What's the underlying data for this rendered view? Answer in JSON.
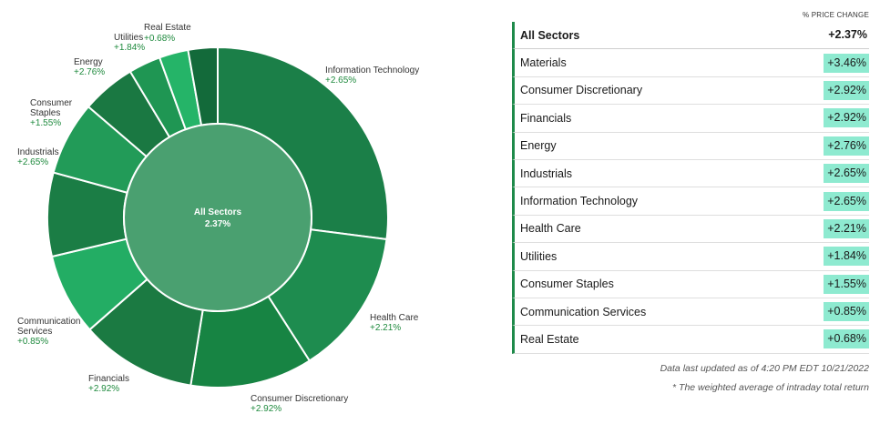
{
  "chart_data": {
    "type": "pie",
    "center": {
      "name": "All Sectors",
      "value": "2.37%"
    },
    "slices": [
      {
        "name": "Information Technology",
        "value_label": "+2.65%",
        "weight": 0.2705,
        "color": "#1b7f48"
      },
      {
        "name": "Health Care",
        "value_label": "+2.21%",
        "weight": 0.1389,
        "color": "#1e8c4f"
      },
      {
        "name": "Consumer Discretionary",
        "value_label": "+2.92%",
        "weight": 0.116,
        "color": "#178443"
      },
      {
        "name": "Financials",
        "value_label": "+2.92%",
        "weight": 0.11,
        "color": "#1b7a42"
      },
      {
        "name": "Communication Services",
        "value_label": "+0.85%",
        "weight": 0.0777,
        "color": "#23ad64"
      },
      {
        "name": "Industrials",
        "value_label": "+2.65%",
        "weight": 0.0795,
        "color": "#1b7d45"
      },
      {
        "name": "Consumer Staples",
        "value_label": "+1.55%",
        "weight": 0.0702,
        "color": "#229b58"
      },
      {
        "name": "Energy",
        "value_label": "+2.76%",
        "weight": 0.0513,
        "color": "#1a7842"
      },
      {
        "name": "Utilities",
        "value_label": "+1.84%",
        "weight": 0.0304,
        "color": "#1f9653"
      },
      {
        "name": "Real Estate",
        "value_label": "+0.68%",
        "weight": 0.0276,
        "color": "#25b468"
      },
      {
        "name": "",
        "value_label": "",
        "weight": 0.0279,
        "color": "#136a3a"
      }
    ]
  },
  "table": {
    "header": "% PRICE CHANGE",
    "all": {
      "name": "All Sectors",
      "value": "+2.37%"
    },
    "rows": [
      {
        "name": "Materials",
        "value": "+3.46%"
      },
      {
        "name": "Consumer Discretionary",
        "value": "+2.92%"
      },
      {
        "name": "Financials",
        "value": "+2.92%"
      },
      {
        "name": "Energy",
        "value": "+2.76%"
      },
      {
        "name": "Industrials",
        "value": "+2.65%"
      },
      {
        "name": "Information Technology",
        "value": "+2.65%"
      },
      {
        "name": "Health Care",
        "value": "+2.21%"
      },
      {
        "name": "Utilities",
        "value": "+1.84%"
      },
      {
        "name": "Consumer Staples",
        "value": "+1.55%"
      },
      {
        "name": "Communication Services",
        "value": "+0.85%"
      },
      {
        "name": "Real Estate",
        "value": "+0.68%"
      }
    ]
  },
  "footnotes": {
    "updated": "Data last updated as of 4:20 PM EDT 10/21/2022",
    "weighted": "* The weighted average of intraday total return"
  }
}
